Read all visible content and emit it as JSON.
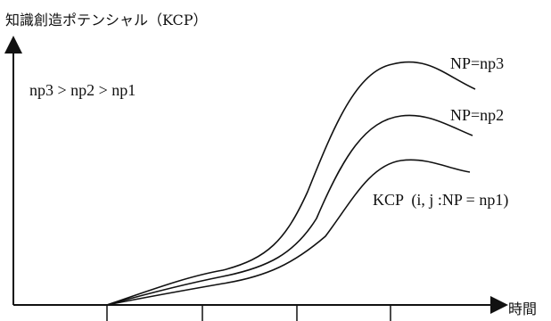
{
  "diagram": {
    "y_axis_label": "知識創造ポテンシャル（KCP）",
    "x_axis_label": "時間",
    "relation_note": "np3 > np2 > np1",
    "curves": [
      {
        "label": "NP=np3"
      },
      {
        "label": "NP=np2"
      },
      {
        "label": "KCP  (i, j :NP = np1)"
      }
    ]
  }
}
